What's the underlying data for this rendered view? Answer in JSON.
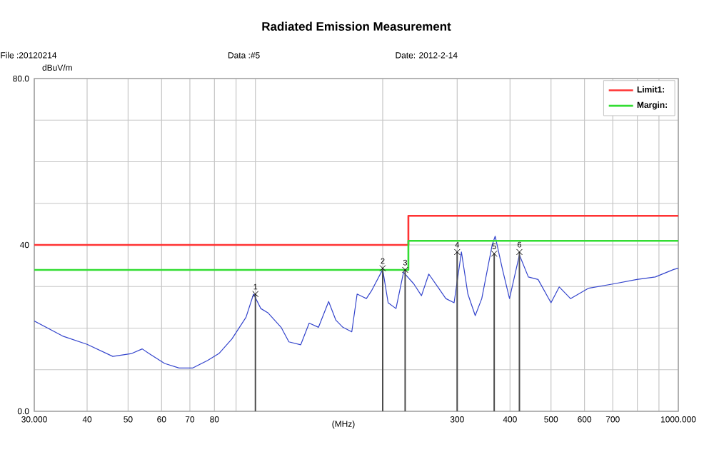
{
  "chart_data": {
    "type": "line",
    "title": "Radiated Emission Measurement",
    "xlabel": "(MHz)",
    "ylabel": "dBuV/m",
    "log": "x",
    "grid": true,
    "legend": "top right",
    "marker": "none",
    "xlim": [
      30,
      1000
    ],
    "ylim": [
      0,
      80
    ],
    "xticks": [
      {
        "value": 30,
        "label": "30.000"
      },
      40,
      50,
      60,
      70,
      80,
      {
        "value": 90,
        "label": null
      },
      {
        "value": 100,
        "label": null
      },
      {
        "value": 200,
        "label": null
      },
      300,
      400,
      500,
      600,
      700,
      {
        "value": 800,
        "label": null
      },
      {
        "value": 900,
        "label": null
      },
      {
        "value": 1000,
        "label": "1000.000"
      }
    ],
    "yticks": [
      {
        "value": 0,
        "label": "0.0"
      },
      {
        "value": 10,
        "label": null
      },
      {
        "value": 20,
        "label": null
      },
      {
        "value": 30,
        "label": null
      },
      40,
      {
        "value": 50,
        "label": null
      },
      {
        "value": 60,
        "label": null
      },
      {
        "value": 70,
        "label": null
      },
      {
        "value": 80,
        "label": "80.0"
      }
    ],
    "series": [
      {
        "color": "#3344cc",
        "x": [
          30,
          35,
          40,
          46,
          51,
          54,
          56,
          61,
          66,
          71,
          77,
          82,
          88,
          95,
          99,
          103,
          107,
          115,
          120,
          128,
          134,
          141,
          149,
          155,
          161,
          169,
          174,
          183,
          188,
          200,
          206,
          215,
          224,
          237,
          247,
          257,
          270,
          282,
          295,
          307,
          318,
          331,
          343,
          363,
          369,
          384,
          399,
          421,
          442,
          466,
          500,
          523,
          556,
          614,
          700,
          798,
          882,
          975,
          1000
        ],
        "values": [
          21.7,
          18.1,
          16.1,
          13.2,
          13.9,
          15.0,
          13.9,
          11.5,
          10.4,
          10.4,
          12.2,
          13.9,
          17.4,
          22.6,
          28.2,
          24.7,
          23.7,
          20.2,
          16.7,
          16.0,
          21.2,
          20.2,
          26.4,
          21.9,
          20.2,
          19.1,
          28.2,
          27.1,
          28.9,
          34.1,
          26.1,
          24.7,
          33.4,
          30.6,
          27.8,
          33.0,
          29.9,
          27.1,
          26.1,
          38.3,
          28.2,
          23.0,
          27.1,
          40.0,
          42.1,
          34.1,
          27.1,
          37.6,
          32.3,
          31.7,
          26.1,
          29.9,
          27.1,
          29.6,
          30.6,
          31.7,
          32.3,
          34.1,
          34.4
        ]
      },
      {
        "type": "step",
        "name": "Limit1:",
        "color": "#ff3333",
        "x": [
          30,
          230,
          1000
        ],
        "values": [
          40,
          47,
          47
        ]
      },
      {
        "type": "step",
        "name": "Margin:",
        "color": "#33dd33",
        "x": [
          30,
          230,
          1000
        ],
        "values": [
          34,
          41,
          41
        ]
      }
    ],
    "annotations": [
      "File :20120214",
      "Data :#5",
      "Date: 2012-2-14",
      {
        "text": "1",
        "x": 100,
        "y": 28.2
      },
      {
        "text": "2",
        "x": 200,
        "y": 34.4
      },
      {
        "text": "3",
        "x": 226,
        "y": 34
      },
      {
        "text": "4",
        "x": 300,
        "y": 38.3
      },
      {
        "text": "5",
        "x": 367,
        "y": 37.9
      },
      {
        "text": "6",
        "x": 421,
        "y": 38.3
      }
    ]
  }
}
